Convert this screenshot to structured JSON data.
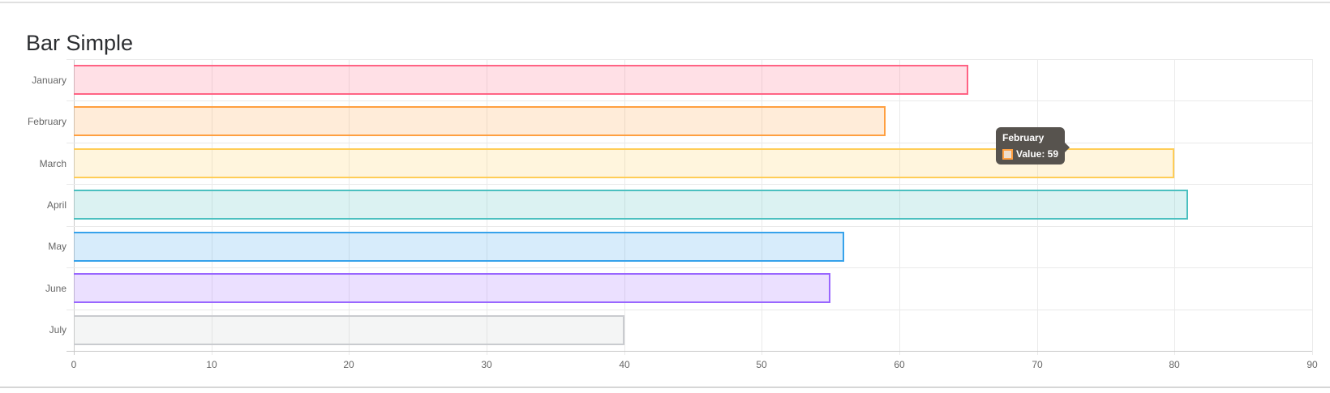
{
  "page": {
    "title": "Bar Simple"
  },
  "chart_data": {
    "type": "bar",
    "orientation": "horizontal",
    "title": "Bar Simple",
    "categories": [
      "January",
      "February",
      "March",
      "April",
      "May",
      "June",
      "July"
    ],
    "values": [
      65,
      59,
      80,
      81,
      56,
      55,
      40
    ],
    "xlabel": "",
    "ylabel": "",
    "xlim": [
      0,
      90
    ],
    "x_ticks": [
      0,
      10,
      20,
      30,
      40,
      50,
      60,
      70,
      80,
      90
    ],
    "grid": true,
    "legend": "none",
    "bar_colors": [
      {
        "name": "red",
        "fill": "rgba(255,99,132,0.2)",
        "border": "rgb(255,99,132)"
      },
      {
        "name": "orange",
        "fill": "rgba(255,159,64,0.2)",
        "border": "rgb(255,159,64)"
      },
      {
        "name": "yellow",
        "fill": "rgba(255,205,86,0.2)",
        "border": "rgb(255,205,86)"
      },
      {
        "name": "teal",
        "fill": "rgba(75,192,192,0.2)",
        "border": "rgb(75,192,192)"
      },
      {
        "name": "blue",
        "fill": "rgba(54,162,235,0.2)",
        "border": "rgb(54,162,235)"
      },
      {
        "name": "purple",
        "fill": "rgba(153,102,255,0.2)",
        "border": "rgb(153,102,255)"
      },
      {
        "name": "grey",
        "fill": "rgba(201,203,207,0.2)",
        "border": "rgb(201,203,207)"
      }
    ]
  },
  "tooltip": {
    "title": "February",
    "label": "Value: 59",
    "background": "#57534e",
    "swatch_border": "#ff9f40",
    "swatch_fill": "#eeddcb"
  },
  "colors": {
    "axis_text": "#666666",
    "grid": "#eaeaea",
    "axis_line": "#c9c9c9",
    "title_text": "#2b2d30"
  }
}
